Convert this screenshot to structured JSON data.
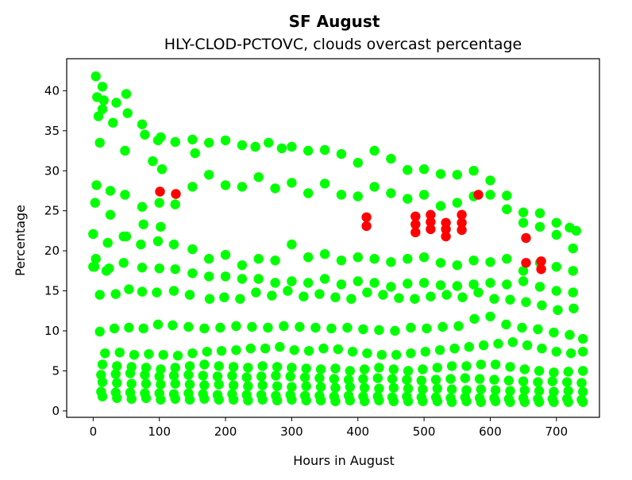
{
  "chart_data": {
    "type": "scatter",
    "title": "SF August",
    "subtitle": "HLY-CLOD-PCTOVC, clouds overcast percentage",
    "xlabel": "Hours in August",
    "ylabel": "Percentage",
    "xlim": [
      -40,
      765
    ],
    "ylim": [
      -0.8,
      44
    ],
    "x_ticks": [
      0,
      100,
      200,
      300,
      400,
      500,
      600,
      700
    ],
    "y_ticks": [
      0,
      5,
      10,
      15,
      20,
      25,
      30,
      35,
      40
    ],
    "grid": false,
    "legend": "none",
    "colors": {
      "normal": "#00ff00",
      "highlight": "#ff0000"
    },
    "series": [
      {
        "color": "#00ff00",
        "x": [
          4,
          6,
          8,
          10,
          14,
          16,
          3,
          5,
          0,
          2,
          14,
          30,
          35,
          50,
          52,
          48,
          74,
          78,
          90,
          98,
          102,
          104,
          124,
          150,
          154,
          175,
          200,
          225,
          245,
          265,
          285,
          300,
          325,
          350,
          375,
          400,
          425,
          450,
          475,
          500,
          525,
          550,
          575,
          600,
          625,
          650,
          675,
          700,
          720,
          730,
          4,
          26,
          26,
          48,
          50,
          74,
          76,
          100,
          102,
          124,
          150,
          175,
          200,
          225,
          250,
          275,
          300,
          325,
          350,
          375,
          400,
          425,
          450,
          475,
          500,
          525,
          550,
          575,
          600,
          625,
          650,
          675,
          700,
          725,
          20,
          22,
          46,
          72,
          98,
          122,
          150,
          175,
          200,
          225,
          250,
          275,
          300,
          325,
          350,
          375,
          400,
          425,
          450,
          475,
          500,
          525,
          550,
          575,
          600,
          625,
          650,
          675,
          700,
          725,
          0,
          24,
          46,
          74,
          100,
          124,
          150,
          175,
          200,
          225,
          250,
          275,
          300,
          325,
          350,
          375,
          400,
          425,
          450,
          475,
          500,
          525,
          550,
          575,
          600,
          625,
          650,
          675,
          700,
          725,
          10,
          34,
          54,
          74,
          96,
          122,
          146,
          176,
          198,
          222,
          246,
          270,
          294,
          318,
          342,
          366,
          390,
          414,
          438,
          462,
          486,
          510,
          534,
          558,
          582,
          606,
          630,
          654,
          678,
          702,
          726,
          10,
          32,
          54,
          76,
          98,
          120,
          144,
          168,
          192,
          216,
          240,
          264,
          288,
          312,
          336,
          360,
          384,
          408,
          432,
          456,
          480,
          504,
          528,
          552,
          576,
          600,
          624,
          648,
          672,
          696,
          720,
          740,
          18,
          40,
          62,
          84,
          106,
          128,
          150,
          172,
          194,
          216,
          238,
          260,
          282,
          304,
          326,
          348,
          370,
          392,
          414,
          436,
          458,
          480,
          502,
          524,
          546,
          568,
          590,
          612,
          634,
          656,
          678,
          700,
          722,
          740,
          14,
          36,
          58,
          80,
          102,
          124,
          146,
          168,
          190,
          212,
          234,
          256,
          278,
          300,
          322,
          344,
          366,
          388,
          410,
          432,
          454,
          476,
          498,
          520,
          542,
          564,
          586,
          608,
          630,
          652,
          674,
          696,
          718,
          740,
          12,
          34,
          56,
          78,
          100,
          122,
          144,
          166,
          188,
          210,
          232,
          254,
          276,
          298,
          320,
          342,
          364,
          386,
          408,
          430,
          452,
          474,
          496,
          518,
          540,
          562,
          584,
          606,
          628,
          650,
          672,
          694,
          716,
          738,
          14,
          36,
          58,
          80,
          102,
          124,
          146,
          168,
          190,
          212,
          234,
          256,
          278,
          300,
          322,
          344,
          366,
          388,
          410,
          432,
          454,
          476,
          498,
          520,
          542,
          564,
          586,
          608,
          630,
          652,
          674,
          696,
          718,
          740,
          12,
          34,
          56,
          78,
          100,
          122,
          144,
          166,
          188,
          210,
          232,
          254,
          276,
          298,
          320,
          342,
          364,
          386,
          408,
          430,
          452,
          474,
          496,
          518,
          540,
          562,
          584,
          606,
          628,
          650,
          672,
          694,
          716,
          738,
          14,
          36,
          58,
          80,
          102,
          124,
          146,
          168,
          190,
          212,
          234,
          256,
          278,
          300,
          322,
          344,
          366,
          388,
          410,
          432,
          454,
          476,
          498,
          520,
          542,
          564,
          586,
          608,
          630,
          652,
          674,
          696,
          718,
          740
        ],
        "y": [
          41.8,
          39.2,
          36.8,
          33.5,
          40.5,
          38.8,
          26.0,
          28.2,
          22.1,
          18.0,
          37.7,
          36.0,
          38.5,
          39.6,
          37.2,
          32.5,
          35.8,
          34.5,
          31.2,
          33.8,
          34.2,
          30.2,
          33.6,
          33.9,
          32.2,
          33.5,
          33.8,
          33.2,
          33.0,
          33.5,
          32.8,
          33.0,
          32.5,
          32.6,
          32.1,
          31.0,
          32.5,
          31.5,
          30.1,
          30.2,
          29.6,
          29.5,
          30.0,
          28.8,
          26.9,
          24.8,
          24.7,
          23.5,
          22.9,
          22.5,
          19.0,
          27.5,
          24.5,
          27.0,
          21.8,
          25.5,
          23.3,
          26.0,
          23.0,
          25.8,
          28.0,
          29.5,
          28.2,
          28.0,
          29.2,
          27.8,
          28.5,
          27.2,
          28.4,
          27.0,
          26.8,
          28.0,
          27.2,
          26.5,
          27.0,
          25.6,
          26.0,
          26.8,
          27.0,
          25.2,
          23.5,
          23.0,
          22.0,
          20.3,
          17.5,
          21.0,
          21.8,
          20.8,
          21.2,
          20.8,
          20.2,
          19.0,
          19.5,
          18.2,
          19.0,
          18.8,
          20.8,
          19.2,
          19.6,
          18.8,
          19.2,
          19.0,
          18.6,
          19.0,
          19.2,
          18.5,
          18.2,
          18.8,
          18.6,
          19.0,
          17.5,
          18.5,
          18.0,
          17.5,
          18.0,
          17.8,
          18.5,
          17.9,
          17.8,
          17.7,
          17.2,
          16.8,
          16.8,
          16.5,
          16.5,
          16.0,
          16.2,
          16.0,
          16.5,
          15.8,
          16.2,
          16.0,
          15.5,
          15.9,
          16.0,
          15.7,
          15.6,
          15.8,
          16.0,
          15.8,
          16.2,
          15.5,
          15.0,
          14.8,
          14.5,
          14.6,
          15.2,
          14.9,
          14.8,
          15.0,
          14.5,
          14.0,
          14.2,
          14.0,
          14.8,
          14.4,
          15.0,
          14.3,
          14.6,
          14.2,
          14.0,
          14.8,
          14.5,
          14.1,
          14.0,
          14.3,
          14.5,
          14.2,
          14.8,
          14.0,
          13.9,
          13.6,
          13.2,
          12.6,
          12.8,
          9.9,
          10.3,
          10.4,
          10.3,
          10.8,
          10.7,
          10.5,
          10.3,
          10.4,
          10.6,
          10.5,
          10.4,
          10.6,
          10.5,
          10.4,
          10.3,
          10.4,
          10.2,
          10.1,
          10.0,
          10.4,
          10.3,
          10.5,
          10.6,
          11.5,
          11.8,
          10.8,
          10.4,
          10.2,
          9.8,
          9.5,
          9.0,
          7.2,
          7.3,
          7.0,
          7.1,
          7.0,
          6.9,
          7.2,
          7.4,
          7.5,
          7.6,
          7.8,
          7.8,
          8.0,
          7.6,
          7.5,
          7.8,
          7.7,
          7.4,
          7.2,
          7.0,
          7.0,
          7.2,
          7.4,
          7.6,
          7.8,
          8.0,
          8.2,
          8.4,
          8.6,
          8.2,
          7.8,
          7.4,
          7.2,
          7.4,
          5.8,
          5.6,
          5.5,
          5.4,
          5.2,
          5.4,
          5.6,
          5.8,
          5.6,
          5.5,
          5.4,
          5.6,
          5.5,
          5.4,
          5.3,
          5.2,
          5.3,
          5.0,
          5.2,
          5.4,
          5.2,
          5.0,
          5.2,
          5.4,
          5.6,
          5.6,
          5.8,
          5.8,
          5.5,
          5.2,
          5.0,
          4.8,
          4.9,
          5.0,
          4.5,
          4.6,
          4.7,
          4.5,
          4.3,
          4.4,
          4.5,
          4.4,
          4.3,
          4.4,
          4.2,
          4.3,
          4.4,
          4.3,
          4.2,
          4.1,
          4.0,
          3.9,
          4.0,
          4.1,
          4.0,
          3.9,
          3.8,
          3.9,
          4.0,
          4.1,
          4.0,
          3.9,
          3.8,
          3.7,
          3.6,
          3.7,
          3.6,
          3.5,
          3.6,
          3.5,
          3.4,
          3.4,
          3.3,
          3.4,
          3.3,
          3.2,
          3.3,
          3.2,
          3.1,
          3.2,
          3.1,
          3.0,
          3.1,
          3.0,
          2.9,
          3.0,
          2.9,
          2.8,
          2.9,
          2.8,
          2.7,
          2.8,
          2.7,
          2.6,
          2.7,
          2.6,
          2.5,
          2.6,
          2.5,
          2.4,
          2.5,
          2.4,
          2.4,
          2.3,
          2.3,
          2.2,
          2.2,
          2.1,
          2.2,
          2.1,
          2.0,
          2.1,
          2.0,
          2.0,
          1.9,
          2.0,
          1.9,
          1.9,
          1.8,
          1.9,
          1.8,
          1.8,
          1.7,
          1.8,
          1.7,
          1.7,
          1.6,
          1.7,
          1.6,
          1.6,
          1.5,
          1.6,
          1.5,
          1.5,
          1.5,
          1.4,
          1.8,
          1.6,
          1.5,
          1.6,
          1.4,
          1.5,
          1.4,
          1.5,
          1.4,
          1.4,
          1.3,
          1.4,
          1.3,
          1.4,
          1.3,
          1.3,
          1.2,
          1.3,
          1.2,
          1.3,
          1.2,
          1.2,
          1.2,
          1.2,
          1.1,
          1.2,
          1.1,
          1.2,
          1.1,
          1.1,
          1.1,
          1.1,
          1.1,
          1.1
        ]
      },
      {
        "color": "#ff0000",
        "x": [
          101,
          125,
          413,
          413,
          487,
          487,
          487,
          510,
          510,
          510,
          533,
          533,
          533,
          557,
          557,
          557,
          582,
          654,
          654,
          677,
          677
        ],
        "y": [
          27.4,
          27.1,
          24.2,
          23.1,
          24.3,
          23.3,
          22.3,
          24.5,
          23.6,
          22.7,
          23.5,
          22.7,
          21.8,
          24.5,
          23.5,
          22.6,
          27.0,
          21.6,
          18.5,
          18.7,
          17.7
        ]
      }
    ]
  }
}
